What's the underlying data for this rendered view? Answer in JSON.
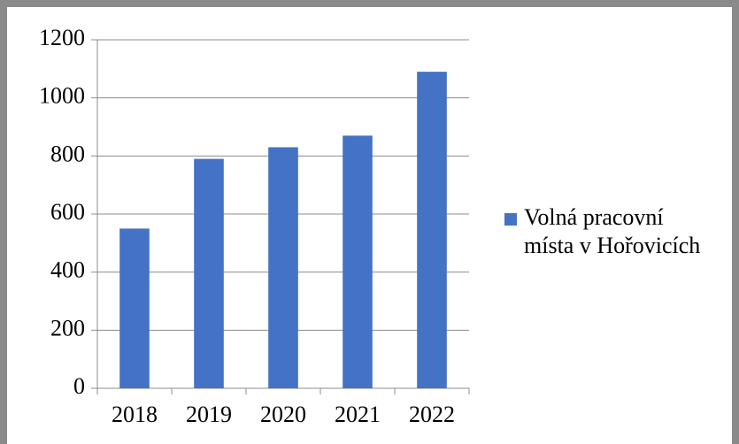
{
  "chart_data": {
    "type": "bar",
    "categories": [
      "2018",
      "2019",
      "2020",
      "2021",
      "2022"
    ],
    "series": [
      {
        "name": "Volná pracovní místa v Hořovicích",
        "color": "#4472c4",
        "values": [
          550,
          790,
          830,
          870,
          1090
        ]
      }
    ],
    "ylim": [
      0,
      1200
    ],
    "yticks": [
      0,
      200,
      400,
      600,
      800,
      1000,
      1200
    ],
    "grid": true,
    "legend": "right"
  }
}
